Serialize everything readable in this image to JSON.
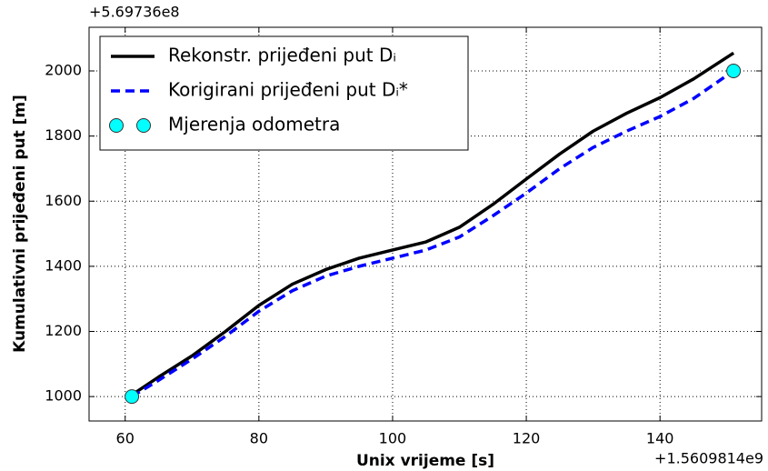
{
  "chart_data": {
    "type": "line",
    "x_label": "Unix vrijeme [s]",
    "y_label": "Kumulativni prijeđeni put [m]",
    "x_offset_label": "+1.5609814e9",
    "y_offset_label": "+5.69736e8",
    "xlim": [
      54.6,
      155.2
    ],
    "ylim": [
      925,
      2134
    ],
    "xticks": [
      60,
      80,
      100,
      120,
      140
    ],
    "yticks": [
      1000,
      1200,
      1400,
      1600,
      1800,
      2000
    ],
    "grid": true,
    "legend": "upper left",
    "series": [
      {
        "name": "Rekonstr. prijeđeni put Dᵢ",
        "color": "#000000",
        "style": "solid",
        "x": [
          61,
          65,
          70,
          75,
          80,
          85,
          90,
          95,
          100,
          105,
          110,
          115,
          120,
          125,
          130,
          135,
          140,
          145,
          151
        ],
        "values": [
          1005,
          1060,
          1125,
          1200,
          1280,
          1345,
          1390,
          1425,
          1450,
          1475,
          1520,
          1590,
          1668,
          1745,
          1815,
          1870,
          1918,
          1975,
          2055
        ]
      },
      {
        "name": "Korigirani prijeđeni put Dᵢ*",
        "color": "#0000ff",
        "style": "dashed",
        "x": [
          61,
          65,
          70,
          75,
          80,
          85,
          90,
          95,
          100,
          105,
          110,
          115,
          120,
          125,
          130,
          135,
          140,
          145,
          151
        ],
        "values": [
          1000,
          1050,
          1115,
          1185,
          1262,
          1325,
          1370,
          1400,
          1425,
          1450,
          1490,
          1555,
          1625,
          1700,
          1765,
          1815,
          1860,
          1915,
          2000
        ]
      },
      {
        "name": "Mjerenja odometra",
        "color": "#00ffff",
        "style": "marker",
        "x": [
          61,
          151
        ],
        "values": [
          1000,
          2000
        ]
      }
    ]
  }
}
